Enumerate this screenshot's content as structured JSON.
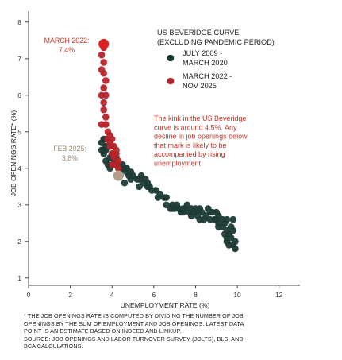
{
  "colors": {
    "pre_pandemic": "#1d3b35",
    "post_pandemic": "#b7232a",
    "feb_2025_marker": "#b3a08a",
    "label_red": "#c0392b",
    "label_tan": "#9e8a76",
    "axis": "#444444"
  },
  "chart_data": {
    "type": "scatter",
    "title": "US BEVERIDGE CURVE",
    "subtitle": "(EXCLUDING PANDEMIC PERIOD)",
    "xlabel": "UNEMPLOYMENT RATE (%)",
    "ylabel": "JOB OPENINGS RATE* (%)",
    "xlim": [
      0,
      13
    ],
    "ylim": [
      0.8,
      8.3
    ],
    "x_ticks": [
      "0",
      "2",
      "4",
      "6",
      "8",
      "10",
      "12"
    ],
    "y_ticks": [
      "1",
      "2",
      "3",
      "4",
      "5",
      "6",
      "7",
      "8"
    ],
    "grid": false,
    "legend_position": "top-right",
    "series": [
      {
        "name": "JULY 2009 - MARCH 2020",
        "points": [
          [
            9.9,
            1.8
          ],
          [
            9.8,
            1.9
          ],
          [
            9.6,
            1.9
          ],
          [
            9.7,
            2.1
          ],
          [
            9.5,
            2.0
          ],
          [
            9.9,
            2.0
          ],
          [
            9.6,
            2.2
          ],
          [
            9.8,
            2.3
          ],
          [
            9.5,
            2.3
          ],
          [
            9.4,
            2.2
          ],
          [
            9.4,
            2.5
          ],
          [
            9.5,
            2.6
          ],
          [
            9.1,
            2.5
          ],
          [
            9.1,
            2.7
          ],
          [
            9.0,
            2.6
          ],
          [
            9.7,
            2.4
          ],
          [
            9.3,
            2.4
          ],
          [
            9.8,
            2.6
          ],
          [
            8.9,
            2.6
          ],
          [
            9.0,
            2.8
          ],
          [
            8.7,
            2.6
          ],
          [
            8.8,
            2.8
          ],
          [
            8.6,
            2.9
          ],
          [
            8.3,
            2.8
          ],
          [
            8.2,
            2.6
          ],
          [
            8.5,
            2.7
          ],
          [
            8.2,
            2.9
          ],
          [
            8.1,
            2.8
          ],
          [
            7.9,
            2.8
          ],
          [
            7.8,
            2.9
          ],
          [
            8.0,
            2.9
          ],
          [
            7.8,
            2.7
          ],
          [
            7.7,
            2.8
          ],
          [
            7.6,
            3.0
          ],
          [
            7.5,
            2.9
          ],
          [
            7.4,
            2.9
          ],
          [
            7.3,
            2.8
          ],
          [
            7.2,
            2.9
          ],
          [
            7.0,
            2.9
          ],
          [
            6.9,
            2.9
          ],
          [
            6.8,
            2.9
          ],
          [
            6.6,
            3.0
          ],
          [
            6.5,
            3.2
          ],
          [
            6.3,
            3.3
          ],
          [
            6.2,
            3.2
          ],
          [
            6.1,
            3.4
          ],
          [
            5.9,
            3.4
          ],
          [
            5.8,
            3.5
          ],
          [
            5.7,
            3.6
          ],
          [
            5.7,
            3.5
          ],
          [
            5.6,
            3.7
          ],
          [
            5.5,
            3.6
          ],
          [
            5.4,
            3.8
          ],
          [
            5.3,
            3.7
          ],
          [
            5.2,
            3.7
          ],
          [
            5.0,
            3.8
          ],
          [
            4.9,
            3.9
          ],
          [
            4.9,
            3.7
          ],
          [
            4.8,
            3.8
          ],
          [
            4.7,
            4.0
          ],
          [
            4.7,
            3.9
          ],
          [
            4.6,
            4.0
          ],
          [
            4.4,
            3.9
          ],
          [
            4.5,
            4.1
          ],
          [
            4.3,
            4.1
          ],
          [
            4.2,
            4.3
          ],
          [
            4.1,
            4.2
          ],
          [
            4.0,
            4.3
          ],
          [
            4.0,
            4.4
          ],
          [
            3.9,
            4.3
          ],
          [
            3.8,
            4.6
          ],
          [
            3.7,
            4.5
          ],
          [
            3.6,
            4.5
          ],
          [
            3.5,
            4.7
          ],
          [
            3.6,
            4.4
          ],
          [
            3.7,
            4.2
          ],
          [
            3.8,
            4.1
          ],
          [
            3.9,
            4.0
          ],
          [
            4.1,
            4.1
          ],
          [
            3.6,
            4.8
          ],
          [
            3.7,
            4.8
          ],
          [
            3.9,
            4.6
          ],
          [
            3.7,
            4.6
          ],
          [
            3.5,
            4.5
          ],
          [
            4.4,
            3.8
          ],
          [
            4.6,
            3.6
          ],
          [
            5.3,
            3.5
          ],
          [
            6.6,
            3.2
          ],
          [
            6.9,
            3.0
          ],
          [
            7.1,
            3.0
          ],
          [
            7.4,
            2.8
          ],
          [
            8.1,
            2.7
          ],
          [
            8.4,
            2.6
          ],
          [
            8.7,
            2.8
          ],
          [
            9.1,
            2.4
          ],
          [
            9.5,
            2.1
          ],
          [
            9.3,
            2.6
          ]
        ]
      },
      {
        "name": "MARCH 2022 - NOV 2025",
        "points": [
          [
            3.6,
            7.4
          ],
          [
            3.6,
            7.3
          ],
          [
            3.5,
            7.1
          ],
          [
            3.6,
            6.9
          ],
          [
            3.5,
            6.7
          ],
          [
            3.6,
            6.6
          ],
          [
            3.7,
            6.4
          ],
          [
            3.6,
            6.2
          ],
          [
            3.5,
            6.0
          ],
          [
            3.7,
            6.0
          ],
          [
            3.6,
            5.8
          ],
          [
            3.6,
            5.6
          ],
          [
            3.7,
            5.4
          ],
          [
            3.5,
            5.2
          ],
          [
            3.7,
            5.2
          ],
          [
            3.8,
            5.0
          ],
          [
            3.9,
            4.9
          ],
          [
            3.8,
            4.8
          ],
          [
            3.9,
            4.7
          ],
          [
            4.0,
            4.8
          ],
          [
            3.9,
            4.6
          ],
          [
            4.1,
            4.6
          ],
          [
            4.2,
            4.5
          ],
          [
            4.0,
            4.4
          ],
          [
            4.2,
            4.4
          ],
          [
            4.1,
            4.3
          ],
          [
            4.3,
            4.2
          ],
          [
            4.2,
            4.1
          ],
          [
            4.0,
            4.1
          ],
          [
            4.3,
            4.0
          ]
        ]
      }
    ],
    "highlights": [
      {
        "label": "MARCH 2022:",
        "value": "7.4%",
        "x": 3.6,
        "y": 7.4,
        "color": "#e02020"
      },
      {
        "label": "FEB 2025:",
        "value": "3.8%",
        "x": 4.3,
        "y": 3.8,
        "color": "#b3a08a"
      }
    ],
    "annotation": [
      "The kink in the US Beveridge",
      "curve is around 4.5%. Any",
      "decline in job openings below",
      "that mark is likely to be",
      "accompanied by rising",
      "unemployment."
    ]
  },
  "footnote": [
    "* THE JOB OPENINGS RATE IS COMPUTED BY DIVIDING THE NUMBER OF JOB",
    "OPENINGS BY THE SUM OF EMPLOYMENT AND JOB OPENINGS. LATEST DATA",
    "POINT IS AN ESTIMATE BASED ON INDEED AND LINKUP.",
    "SOURCE: JOB OPENINGS AND LABOR TURNOVER SURVEY (JOLTS), BLS, AND",
    "BCA CALCULATIONS."
  ]
}
